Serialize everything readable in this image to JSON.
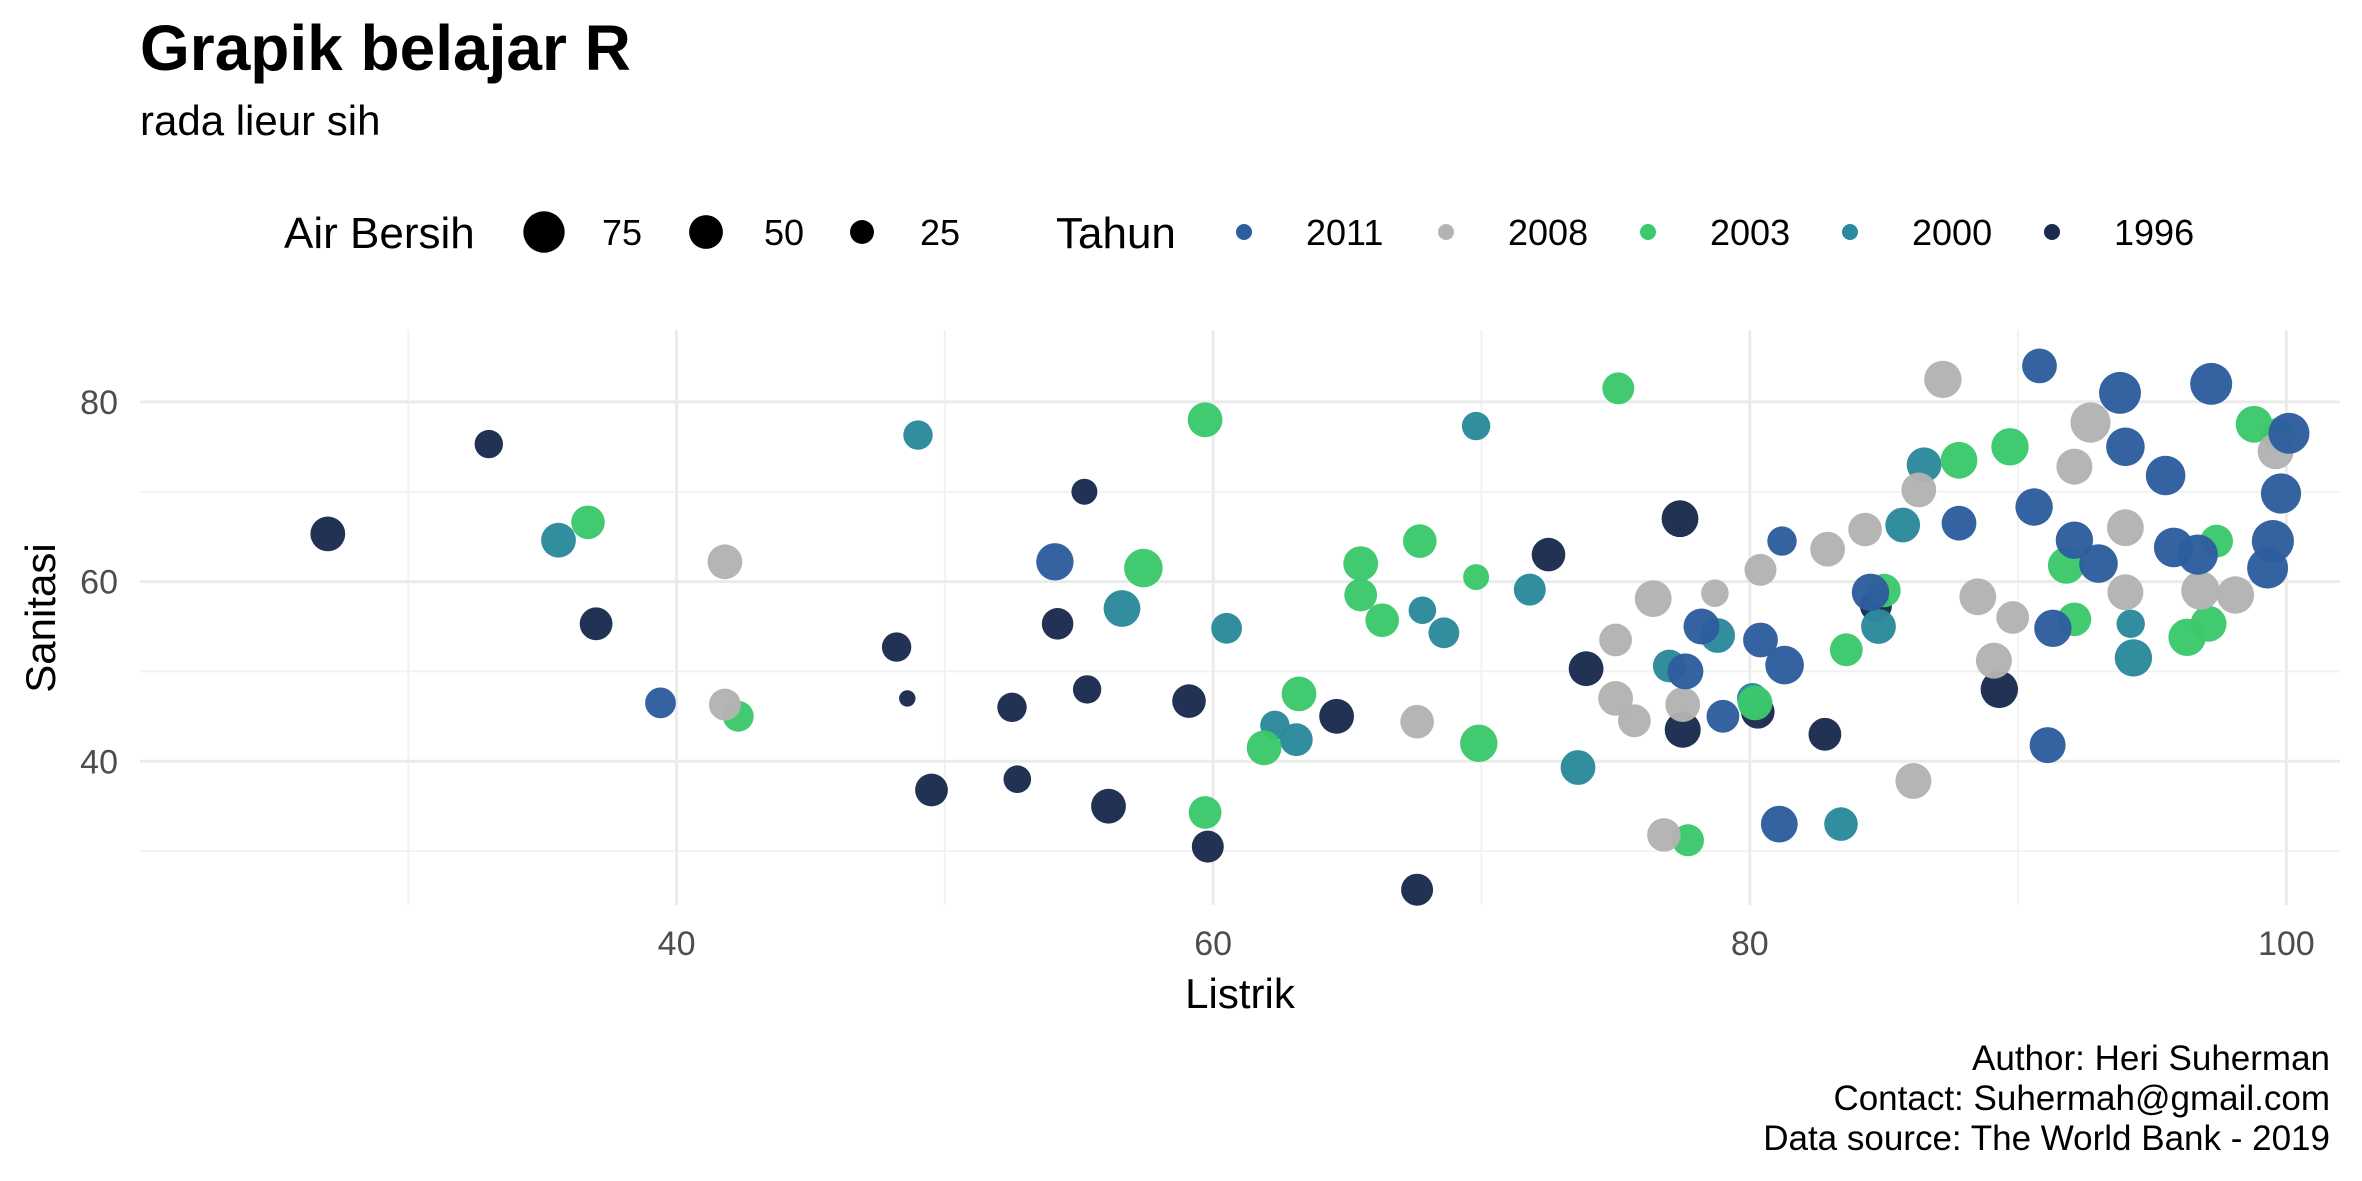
{
  "chart_data": {
    "type": "scatter",
    "title": "Grapik belajar R",
    "subtitle": "rada lieur sih",
    "xlabel": "Listrik",
    "ylabel": "Sanitasi",
    "xlim": [
      20,
      102
    ],
    "ylim": [
      24,
      88
    ],
    "x_ticks": [
      "40",
      "60",
      "80",
      "100"
    ],
    "x_tick_values": [
      40,
      60,
      80,
      100
    ],
    "y_ticks": [
      "40",
      "60",
      "80"
    ],
    "y_tick_values": [
      40,
      60,
      80
    ],
    "grid": true,
    "legend_position": "top",
    "size_legend": {
      "title": "Air Bersih",
      "entries": [
        {
          "label": "75",
          "value": 75
        },
        {
          "label": "50",
          "value": 50
        },
        {
          "label": "25",
          "value": 25
        }
      ]
    },
    "color_legend": {
      "title": "Tahun",
      "entries": [
        {
          "label": "2011",
          "color": "#2e5d9e"
        },
        {
          "label": "2008",
          "color": "#b3b3b3"
        },
        {
          "label": "2003",
          "color": "#3cc86c"
        },
        {
          "label": "2000",
          "color": "#2b8a9c"
        },
        {
          "label": "1996",
          "color": "#1a2b4f"
        }
      ]
    },
    "series": [
      {
        "name": "1996",
        "color": "#1a2b4f",
        "points": [
          [
            27,
            65.3,
            45
          ],
          [
            33,
            75.3,
            30
          ],
          [
            37,
            55.3,
            40
          ],
          [
            48.2,
            52.7,
            32
          ],
          [
            48.6,
            47,
            10
          ],
          [
            49.5,
            36.8,
            40
          ],
          [
            52.5,
            46,
            32
          ],
          [
            52.7,
            38,
            28
          ],
          [
            54.2,
            55.3,
            37
          ],
          [
            55.2,
            70,
            25
          ],
          [
            55.3,
            48,
            30
          ],
          [
            56.1,
            35,
            45
          ],
          [
            59.1,
            46.7,
            42
          ],
          [
            59.8,
            30.5,
            38
          ],
          [
            64.6,
            45,
            45
          ],
          [
            67.6,
            25.7,
            38
          ],
          [
            72.5,
            63,
            42
          ],
          [
            73.9,
            50.3,
            45
          ],
          [
            77.4,
            67,
            50
          ],
          [
            77.5,
            43.5,
            48
          ],
          [
            80.3,
            45.5,
            42
          ],
          [
            82.8,
            43,
            40
          ],
          [
            84.7,
            57.3,
            38
          ],
          [
            89.3,
            48,
            52
          ]
        ]
      },
      {
        "name": "2000",
        "color": "#2b8a9c",
        "points": [
          [
            35.6,
            64.6,
            45
          ],
          [
            49,
            76.3,
            32
          ],
          [
            56.6,
            57,
            50
          ],
          [
            60.5,
            54.8,
            35
          ],
          [
            62.3,
            44,
            32
          ],
          [
            63.1,
            42.4,
            40
          ],
          [
            67.8,
            56.8,
            28
          ],
          [
            68.6,
            54.3,
            35
          ],
          [
            69.8,
            77.3,
            30
          ],
          [
            71.8,
            59.1,
            38
          ],
          [
            73.6,
            39.3,
            45
          ],
          [
            77,
            50.6,
            40
          ],
          [
            78.8,
            54,
            45
          ],
          [
            80.1,
            47,
            35
          ],
          [
            83.4,
            33,
            42
          ],
          [
            84.8,
            55,
            45
          ],
          [
            85.7,
            66.3,
            45
          ],
          [
            86.5,
            73,
            45
          ],
          [
            94.2,
            55.3,
            30
          ],
          [
            94.3,
            51.5,
            52
          ]
        ]
      },
      {
        "name": "2003",
        "color": "#3cc86c",
        "points": [
          [
            36.7,
            66.6,
            42
          ],
          [
            42.3,
            45,
            35
          ],
          [
            57.4,
            61.5,
            55
          ],
          [
            59.7,
            78,
            45
          ],
          [
            59.7,
            34.3,
            40
          ],
          [
            61.9,
            41.5,
            45
          ],
          [
            63.2,
            47.5,
            45
          ],
          [
            65.5,
            62,
            45
          ],
          [
            65.5,
            58.5,
            40
          ],
          [
            66.3,
            55.7,
            42
          ],
          [
            67.7,
            64.5,
            42
          ],
          [
            69.8,
            60.5,
            25
          ],
          [
            69.9,
            42,
            52
          ],
          [
            75.1,
            81.5,
            38
          ],
          [
            77.7,
            31.2,
            38
          ],
          [
            80.2,
            46.5,
            45
          ],
          [
            83.6,
            52.4,
            40
          ],
          [
            85,
            59,
            42
          ],
          [
            87.8,
            73.5,
            50
          ],
          [
            89.7,
            75,
            52
          ],
          [
            91.8,
            61.8,
            50
          ],
          [
            92.1,
            55.8,
            42
          ],
          [
            96.3,
            53.8,
            52
          ],
          [
            97.1,
            55.3,
            48
          ],
          [
            97.4,
            64.5,
            40
          ],
          [
            98.8,
            77.5,
            50
          ],
          [
            99.7,
            76.3,
            45
          ]
        ]
      },
      {
        "name": "2008",
        "color": "#b3b3b3",
        "points": [
          [
            41.8,
            62.2,
            45
          ],
          [
            41.8,
            46.3,
            38
          ],
          [
            67.6,
            44.4,
            42
          ],
          [
            75,
            53.5,
            40
          ],
          [
            75,
            47,
            45
          ],
          [
            75.7,
            44.5,
            40
          ],
          [
            76.4,
            58.1,
            50
          ],
          [
            76.8,
            31.8,
            42
          ],
          [
            77.5,
            46.3,
            45
          ],
          [
            78.7,
            58.7,
            28
          ],
          [
            80.4,
            61.3,
            38
          ],
          [
            82.9,
            63.6,
            45
          ],
          [
            84.3,
            65.8,
            42
          ],
          [
            86.1,
            37.8,
            48
          ],
          [
            86.3,
            70.2,
            45
          ],
          [
            87.2,
            82.5,
            52
          ],
          [
            88.5,
            58.3,
            50
          ],
          [
            89.1,
            51.2,
            48
          ],
          [
            89.8,
            56,
            40
          ],
          [
            92.1,
            72.8,
            48
          ],
          [
            92.7,
            77.7,
            60
          ],
          [
            94,
            66,
            50
          ],
          [
            94,
            58.8,
            48
          ],
          [
            96.8,
            59,
            55
          ],
          [
            98.1,
            58.5,
            52
          ],
          [
            99.6,
            74.5,
            48
          ]
        ]
      },
      {
        "name": "2011",
        "color": "#2e5d9e",
        "points": [
          [
            39.4,
            46.5,
            35
          ],
          [
            54.1,
            62.2,
            52
          ],
          [
            77.6,
            50,
            48
          ],
          [
            78.2,
            55,
            48
          ],
          [
            79,
            45,
            40
          ],
          [
            80.4,
            53.5,
            45
          ],
          [
            81.1,
            33,
            50
          ],
          [
            81.2,
            64.5,
            32
          ],
          [
            81.3,
            50.7,
            55
          ],
          [
            84.5,
            58.8,
            52
          ],
          [
            87.8,
            66.5,
            45
          ],
          [
            90.6,
            68.3,
            52
          ],
          [
            90.8,
            84,
            45
          ],
          [
            91.1,
            41.8,
            48
          ],
          [
            91.3,
            54.8,
            52
          ],
          [
            92.1,
            64.6,
            52
          ],
          [
            93,
            62,
            55
          ],
          [
            93.8,
            81,
            65
          ],
          [
            94,
            75,
            55
          ],
          [
            95.5,
            71.8,
            58
          ],
          [
            95.8,
            63.8,
            58
          ],
          [
            96.7,
            63,
            60
          ],
          [
            97.2,
            82,
            65
          ],
          [
            99.3,
            61.5,
            62
          ],
          [
            99.5,
            64.5,
            66
          ],
          [
            99.8,
            69.8,
            60
          ],
          [
            100.1,
            76.5,
            62
          ]
        ]
      }
    ]
  },
  "caption": {
    "line1": "Author: Heri Suherman",
    "line2": "Contact: Suhermah@gmail.com",
    "line3": "Data source: The World Bank - 2019"
  }
}
